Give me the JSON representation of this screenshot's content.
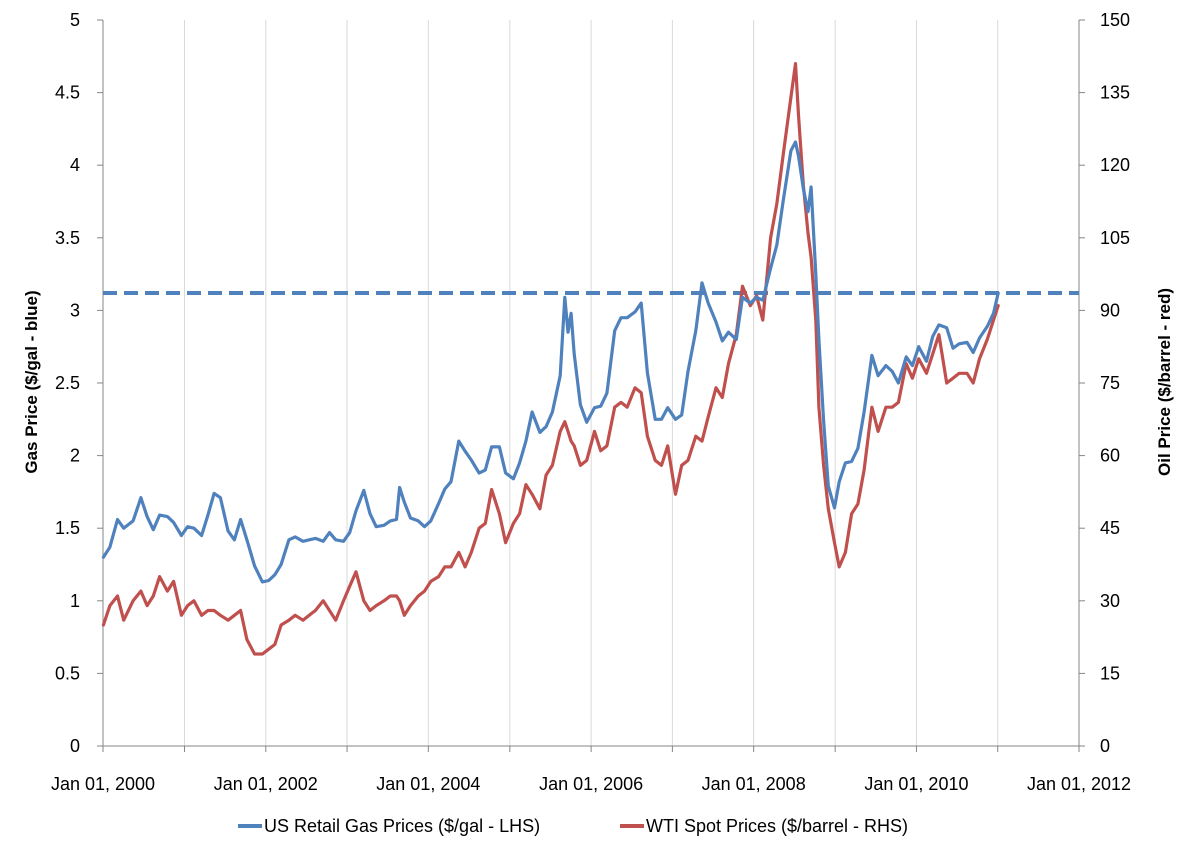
{
  "chart_data": {
    "type": "line",
    "title": "",
    "xlabel": "",
    "ylabel": "Gas Price ($/gal - blue)",
    "y2label": "Oil Price ($/barrel - red)",
    "xlim": [
      "2000-01-01",
      "2012-01-01"
    ],
    "ylim": [
      0,
      5
    ],
    "y2lim": [
      0,
      150
    ],
    "x_ticks": [
      "Jan 01, 2000",
      "Jan 01, 2002",
      "Jan 01, 2004",
      "Jan 01, 2006",
      "Jan 01, 2008",
      "Jan 01, 2010",
      "Jan 01, 2012"
    ],
    "y_ticks": [
      "0",
      "0.5",
      "1",
      "1.5",
      "2",
      "2.5",
      "3",
      "3.5",
      "4",
      "4.5",
      "5"
    ],
    "y2_ticks": [
      "0",
      "15",
      "30",
      "45",
      "60",
      "75",
      "90",
      "105",
      "120",
      "135",
      "150"
    ],
    "grid": "vertical",
    "legend_position": "bottom",
    "reference_line": {
      "axis": "left",
      "value": 3.12,
      "style": "dashed",
      "color": "#4f81bd"
    },
    "series": [
      {
        "name": "US Retail Gas Prices ($/gal - LHS)",
        "axis": "left",
        "color": "#4f81bd",
        "x": [
          "2000-01-03",
          "2000-02-01",
          "2000-03-06",
          "2000-04-03",
          "2000-05-15",
          "2000-06-19",
          "2000-07-17",
          "2000-08-14",
          "2000-09-11",
          "2000-10-16",
          "2000-11-13",
          "2000-12-18",
          "2001-01-15",
          "2001-02-12",
          "2001-03-19",
          "2001-04-16",
          "2001-05-14",
          "2001-06-11",
          "2001-07-16",
          "2001-08-13",
          "2001-09-10",
          "2001-10-08",
          "2001-11-12",
          "2001-12-17",
          "2002-01-14",
          "2002-02-11",
          "2002-03-11",
          "2002-04-15",
          "2002-05-13",
          "2002-06-17",
          "2002-07-15",
          "2002-08-12",
          "2002-09-16",
          "2002-10-14",
          "2002-11-11",
          "2002-12-16",
          "2003-01-13",
          "2003-02-10",
          "2003-03-17",
          "2003-04-14",
          "2003-05-12",
          "2003-06-16",
          "2003-07-14",
          "2003-08-11",
          "2003-08-25",
          "2003-09-15",
          "2003-10-13",
          "2003-11-17",
          "2003-12-15",
          "2004-01-12",
          "2004-02-16",
          "2004-03-15",
          "2004-04-12",
          "2004-05-17",
          "2004-06-14",
          "2004-07-12",
          "2004-08-16",
          "2004-09-13",
          "2004-10-11",
          "2004-11-15",
          "2004-12-13",
          "2005-01-17",
          "2005-02-14",
          "2005-03-14",
          "2005-04-11",
          "2005-05-16",
          "2005-06-13",
          "2005-07-11",
          "2005-08-15",
          "2005-09-05",
          "2005-09-19",
          "2005-10-03",
          "2005-10-17",
          "2005-11-14",
          "2005-12-12",
          "2006-01-16",
          "2006-02-13",
          "2006-03-13",
          "2006-04-17",
          "2006-05-15",
          "2006-06-12",
          "2006-07-17",
          "2006-08-14",
          "2006-09-11",
          "2006-10-16",
          "2006-11-13",
          "2006-12-11",
          "2007-01-15",
          "2007-02-12",
          "2007-03-12",
          "2007-04-16",
          "2007-05-14",
          "2007-06-11",
          "2007-07-16",
          "2007-08-13",
          "2007-09-10",
          "2007-10-15",
          "2007-11-12",
          "2007-12-17",
          "2008-01-14",
          "2008-02-11",
          "2008-03-17",
          "2008-04-14",
          "2008-05-12",
          "2008-06-16",
          "2008-07-07",
          "2008-07-21",
          "2008-08-11",
          "2008-09-01",
          "2008-09-15",
          "2008-10-06",
          "2008-10-20",
          "2008-11-10",
          "2008-12-01",
          "2008-12-29",
          "2009-01-19",
          "2009-02-16",
          "2009-03-16",
          "2009-04-13",
          "2009-05-11",
          "2009-06-15",
          "2009-07-13",
          "2009-08-17",
          "2009-09-14",
          "2009-10-12",
          "2009-11-16",
          "2009-12-14",
          "2010-01-11",
          "2010-02-15",
          "2010-03-15",
          "2010-04-12",
          "2010-05-17",
          "2010-06-14",
          "2010-07-12",
          "2010-08-16",
          "2010-09-13",
          "2010-10-11",
          "2010-11-15",
          "2010-12-13",
          "2011-01-03"
        ],
        "y": [
          1.3,
          1.37,
          1.56,
          1.5,
          1.55,
          1.71,
          1.58,
          1.49,
          1.59,
          1.58,
          1.54,
          1.45,
          1.51,
          1.5,
          1.45,
          1.59,
          1.74,
          1.71,
          1.48,
          1.42,
          1.56,
          1.42,
          1.24,
          1.13,
          1.14,
          1.18,
          1.25,
          1.42,
          1.44,
          1.41,
          1.42,
          1.43,
          1.41,
          1.47,
          1.42,
          1.41,
          1.47,
          1.62,
          1.76,
          1.6,
          1.51,
          1.52,
          1.55,
          1.56,
          1.78,
          1.68,
          1.57,
          1.55,
          1.51,
          1.55,
          1.67,
          1.77,
          1.82,
          2.1,
          2.03,
          1.97,
          1.88,
          1.9,
          2.06,
          2.06,
          1.88,
          1.84,
          1.95,
          2.1,
          2.3,
          2.16,
          2.2,
          2.3,
          2.55,
          3.09,
          2.85,
          2.98,
          2.7,
          2.35,
          2.23,
          2.33,
          2.34,
          2.43,
          2.86,
          2.95,
          2.95,
          2.99,
          3.05,
          2.57,
          2.25,
          2.25,
          2.33,
          2.25,
          2.28,
          2.58,
          2.86,
          3.19,
          3.05,
          2.92,
          2.79,
          2.85,
          2.8,
          3.09,
          3.05,
          3.09,
          3.07,
          3.29,
          3.45,
          3.75,
          4.1,
          4.16,
          4.06,
          3.84,
          3.68,
          3.85,
          3.25,
          2.8,
          2.24,
          1.79,
          1.64,
          1.82,
          1.95,
          1.96,
          2.05,
          2.3,
          2.69,
          2.55,
          2.62,
          2.58,
          2.5,
          2.68,
          2.62,
          2.75,
          2.65,
          2.82,
          2.9,
          2.88,
          2.74,
          2.77,
          2.78,
          2.71,
          2.81,
          2.89,
          2.98,
          3.12
        ]
      },
      {
        "name": "WTI Spot Prices ($/barrel - RHS)",
        "axis": "right",
        "color": "#c0504d",
        "x": [
          "2000-01-03",
          "2000-02-01",
          "2000-03-06",
          "2000-04-03",
          "2000-05-15",
          "2000-06-19",
          "2000-07-17",
          "2000-08-14",
          "2000-09-11",
          "2000-10-16",
          "2000-11-13",
          "2000-12-18",
          "2001-01-15",
          "2001-02-12",
          "2001-03-19",
          "2001-04-16",
          "2001-05-14",
          "2001-06-11",
          "2001-07-16",
          "2001-08-13",
          "2001-09-10",
          "2001-10-08",
          "2001-11-12",
          "2001-12-17",
          "2002-01-14",
          "2002-02-11",
          "2002-03-11",
          "2002-04-15",
          "2002-05-13",
          "2002-06-17",
          "2002-07-15",
          "2002-08-12",
          "2002-09-16",
          "2002-10-14",
          "2002-11-11",
          "2002-12-16",
          "2003-01-13",
          "2003-02-10",
          "2003-03-17",
          "2003-04-14",
          "2003-05-12",
          "2003-06-16",
          "2003-07-14",
          "2003-08-11",
          "2003-08-25",
          "2003-09-15",
          "2003-10-13",
          "2003-11-17",
          "2003-12-15",
          "2004-01-12",
          "2004-02-16",
          "2004-03-15",
          "2004-04-12",
          "2004-05-17",
          "2004-06-14",
          "2004-07-12",
          "2004-08-16",
          "2004-09-13",
          "2004-10-11",
          "2004-11-15",
          "2004-12-13",
          "2005-01-17",
          "2005-02-14",
          "2005-03-14",
          "2005-04-11",
          "2005-05-16",
          "2005-06-13",
          "2005-07-11",
          "2005-08-15",
          "2005-09-05",
          "2005-09-19",
          "2005-10-03",
          "2005-10-17",
          "2005-11-14",
          "2005-12-12",
          "2006-01-16",
          "2006-02-13",
          "2006-03-13",
          "2006-04-17",
          "2006-05-15",
          "2006-06-12",
          "2006-07-17",
          "2006-08-14",
          "2006-09-11",
          "2006-10-16",
          "2006-11-13",
          "2006-12-11",
          "2007-01-15",
          "2007-02-12",
          "2007-03-12",
          "2007-04-16",
          "2007-05-14",
          "2007-06-11",
          "2007-07-16",
          "2007-08-13",
          "2007-09-10",
          "2007-10-15",
          "2007-11-12",
          "2007-12-17",
          "2008-01-14",
          "2008-02-11",
          "2008-03-17",
          "2008-04-14",
          "2008-05-12",
          "2008-06-16",
          "2008-07-07",
          "2008-07-21",
          "2008-08-11",
          "2008-09-01",
          "2008-09-15",
          "2008-10-06",
          "2008-10-20",
          "2008-11-10",
          "2008-12-01",
          "2008-12-29",
          "2009-01-19",
          "2009-02-16",
          "2009-03-16",
          "2009-04-13",
          "2009-05-11",
          "2009-06-15",
          "2009-07-13",
          "2009-08-17",
          "2009-09-14",
          "2009-10-12",
          "2009-11-16",
          "2009-12-14",
          "2010-01-11",
          "2010-02-15",
          "2010-03-15",
          "2010-04-12",
          "2010-05-17",
          "2010-06-14",
          "2010-07-12",
          "2010-08-16",
          "2010-09-13",
          "2010-10-11",
          "2010-11-15",
          "2010-12-13",
          "2011-01-03"
        ],
        "y": [
          25,
          29,
          31,
          26,
          30,
          32,
          29,
          31,
          35,
          32,
          34,
          27,
          29,
          30,
          27,
          28,
          28,
          27,
          26,
          27,
          28,
          22,
          19,
          19,
          20,
          21,
          25,
          26,
          27,
          26,
          27,
          28,
          30,
          28,
          26,
          30,
          33,
          36,
          30,
          28,
          29,
          30,
          31,
          31,
          30,
          27,
          29,
          31,
          32,
          34,
          35,
          37,
          37,
          40,
          37,
          40,
          45,
          46,
          53,
          48,
          42,
          46,
          48,
          54,
          52,
          49,
          56,
          58,
          65,
          67,
          65,
          63,
          62,
          58,
          59,
          65,
          61,
          62,
          70,
          71,
          70,
          74,
          73,
          64,
          59,
          58,
          62,
          52,
          58,
          59,
          64,
          63,
          68,
          74,
          72,
          79,
          85,
          95,
          91,
          93,
          88,
          105,
          112,
          122,
          134,
          141,
          130,
          116,
          106,
          101,
          88,
          70,
          58,
          49,
          42,
          37,
          40,
          48,
          50,
          57,
          70,
          65,
          70,
          70,
          71,
          79,
          76,
          80,
          77,
          81,
          85,
          75,
          76,
          77,
          77,
          75,
          80,
          84,
          88,
          91
        ]
      }
    ]
  }
}
